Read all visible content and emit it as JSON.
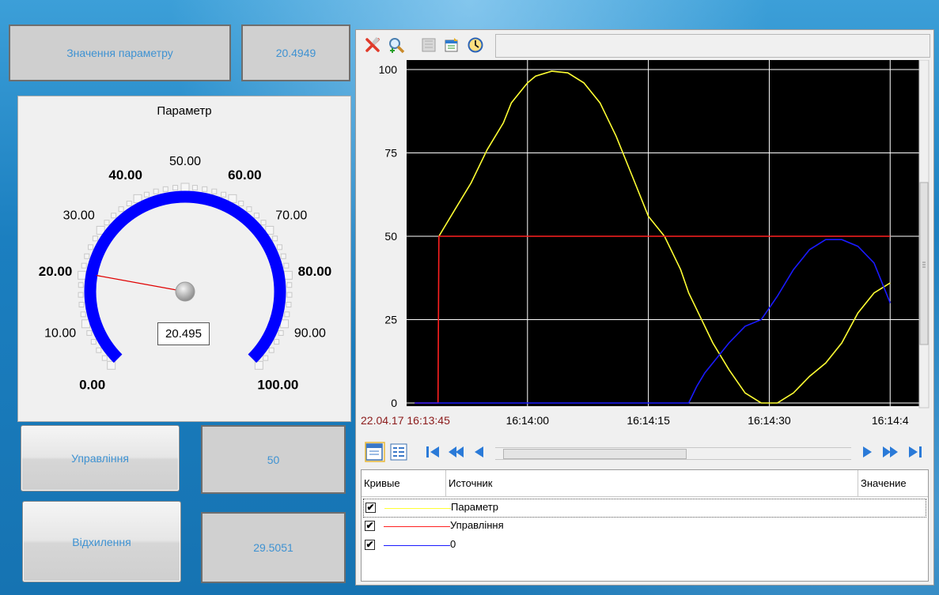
{
  "param_box": {
    "label": "Значення параметру",
    "value": "20.4949"
  },
  "gauge": {
    "title": "Параметр",
    "min": 0,
    "max": 100,
    "value": 20.495,
    "readout": "20.495",
    "ticks": [
      "0.00",
      "10.00",
      "20.00",
      "30.00",
      "40.00",
      "50.00",
      "60.00",
      "70.00",
      "80.00",
      "90.00",
      "100.00"
    ],
    "arc_color": "#0000ff",
    "needle_color": "#e00000"
  },
  "control": {
    "label": "Управління",
    "value": "50"
  },
  "deviation": {
    "label": "Відхилення",
    "value": "29.5051"
  },
  "toolbar": {
    "icons": [
      "clear-icon",
      "zoom-icon",
      "print-icon",
      "export-icon",
      "clock-icon"
    ]
  },
  "chart_data": {
    "type": "line",
    "y_ticks": [
      "100",
      "75",
      "50",
      "25",
      "0"
    ],
    "ylim": [
      0,
      100
    ],
    "x_start_label": "22.04.17 16:13:45",
    "x_tick_labels": [
      "16:14:00",
      "16:14:15",
      "16:14:30",
      "16:14:4"
    ],
    "xlim_seconds": [
      0,
      64
    ],
    "background": "#000000",
    "grid": true,
    "series": [
      {
        "name": "Параметр",
        "color": "#ffff33",
        "x": [
          4,
          6,
          8,
          10,
          11,
          12,
          13,
          14,
          15,
          16,
          18,
          20,
          22,
          24,
          26,
          28,
          30,
          32,
          34,
          35,
          36,
          38,
          40,
          42,
          44,
          45,
          46,
          48,
          50,
          52,
          54,
          56,
          58,
          60
        ],
        "y": [
          50,
          58,
          66,
          76,
          80,
          84,
          90,
          93,
          96,
          98,
          99.5,
          99,
          96,
          90,
          80,
          68,
          56,
          50,
          40,
          33,
          28,
          18,
          10,
          3,
          0,
          0,
          0,
          3,
          8,
          12,
          18,
          27,
          33,
          36
        ]
      },
      {
        "name": "Управління",
        "color": "#ff2020",
        "x": [
          1,
          3.9,
          4,
          60
        ],
        "y": [
          0,
          0,
          50,
          50
        ]
      },
      {
        "name": "0",
        "color": "#1a1aff",
        "x": [
          1,
          3.9,
          35,
          36,
          37,
          38,
          40,
          42,
          44,
          46,
          48,
          50,
          52,
          54,
          56,
          58,
          60
        ],
        "y": [
          0,
          0,
          0,
          5,
          9,
          12,
          18,
          23,
          25,
          32,
          40,
          46,
          49,
          49,
          47,
          42,
          30
        ]
      }
    ]
  },
  "nav": {
    "icons": [
      "add-curve-icon",
      "curve-list-icon",
      "first-icon",
      "fast-back-icon",
      "back-icon",
      "forward-icon",
      "fast-forward-icon",
      "last-icon"
    ]
  },
  "table": {
    "headers": [
      "Кривые",
      "Источник",
      "Значение"
    ],
    "rows": [
      {
        "checked": true,
        "color": "#ffff33",
        "source": "Параметр"
      },
      {
        "checked": true,
        "color": "#ff2020",
        "source": "Управління"
      },
      {
        "checked": true,
        "color": "#1a1aff",
        "source": "0"
      }
    ],
    "check_mark": "✔"
  }
}
